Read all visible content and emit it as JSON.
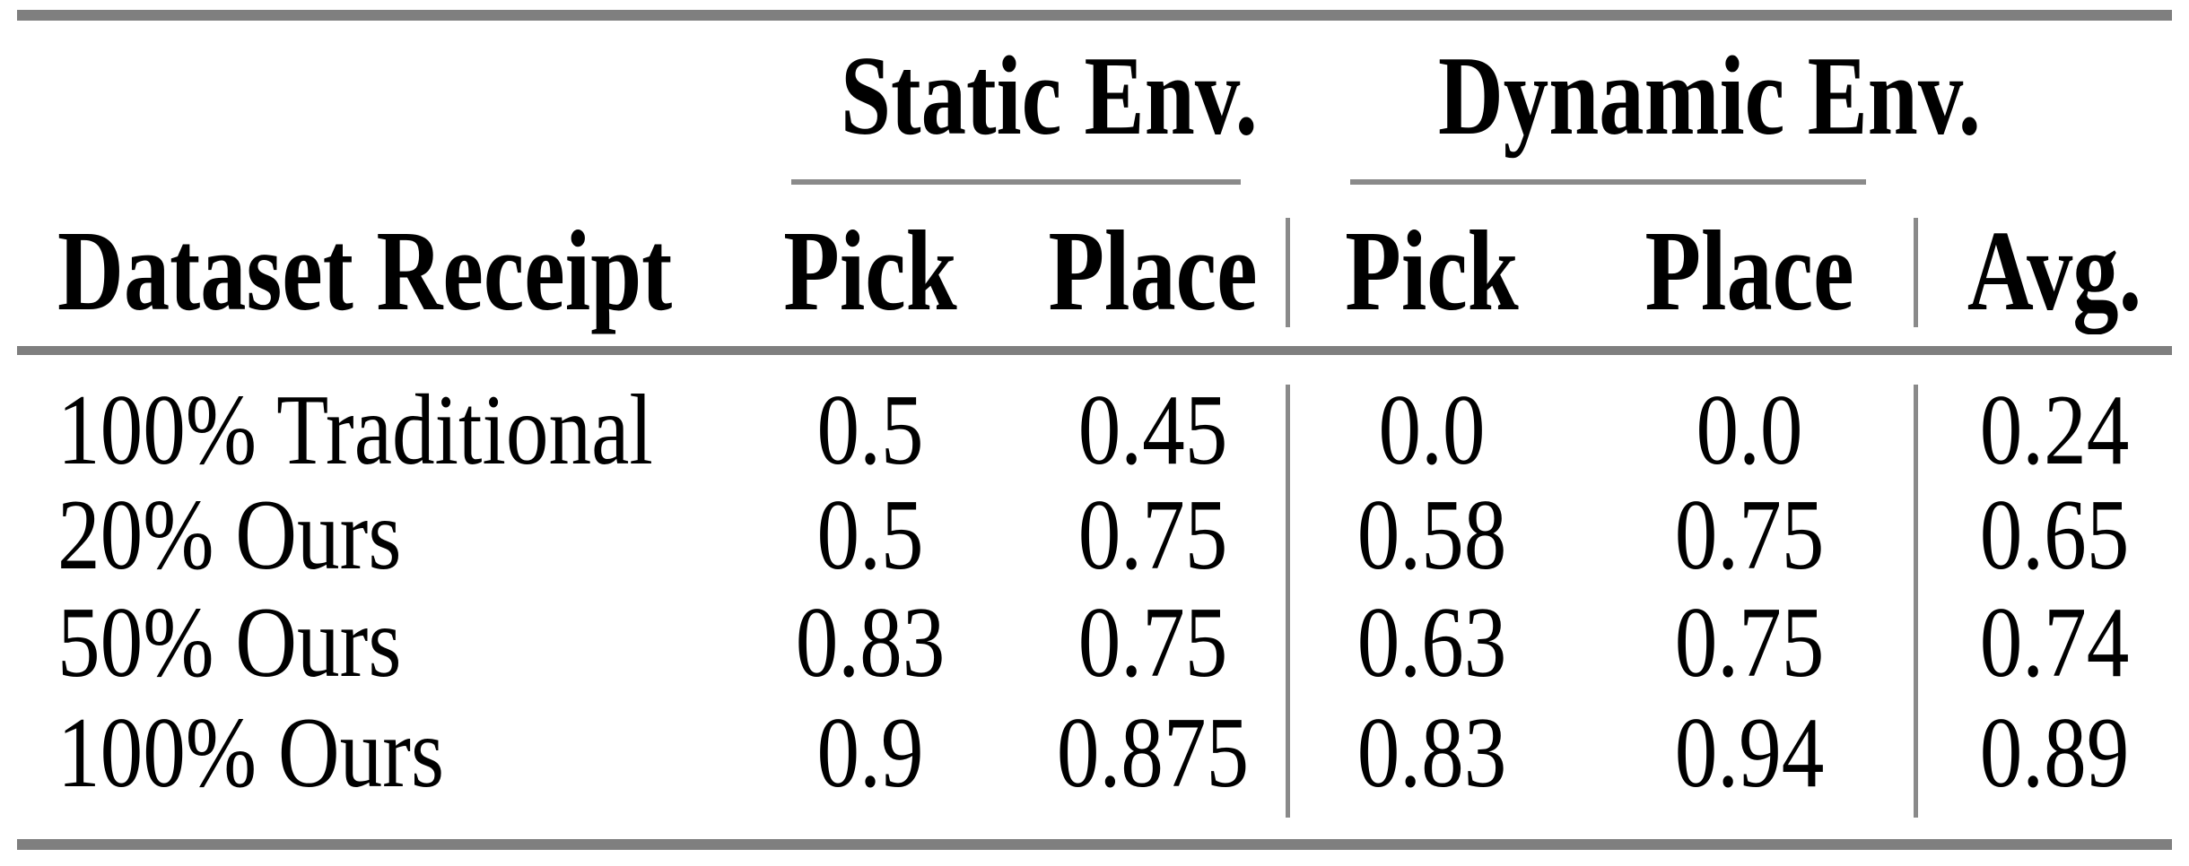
{
  "table": {
    "group_headers": {
      "static": "Static Env.",
      "dynamic": "Dynamic Env."
    },
    "columns": {
      "label": "Dataset Receipt",
      "static_pick": "Pick",
      "static_place": "Place",
      "dynamic_pick": "Pick",
      "dynamic_place": "Place",
      "avg": "Avg."
    },
    "rows": [
      {
        "label": "100% Traditional",
        "static_pick": "0.5",
        "static_place": "0.45",
        "dynamic_pick": "0.0",
        "dynamic_place": "0.0",
        "avg": "0.24"
      },
      {
        "label": "20% Ours",
        "static_pick": "0.5",
        "static_place": "0.75",
        "dynamic_pick": "0.58",
        "dynamic_place": "0.75",
        "avg": "0.65"
      },
      {
        "label": "50% Ours",
        "static_pick": "0.83",
        "static_place": "0.75",
        "dynamic_pick": "0.63",
        "dynamic_place": "0.75",
        "avg": "0.74"
      },
      {
        "label": "100% Ours",
        "static_pick": "0.9",
        "static_place": "0.875",
        "dynamic_pick": "0.83",
        "dynamic_place": "0.94",
        "avg": "0.89"
      }
    ],
    "colors": {
      "thick_rule": "#7f7f7f",
      "thin_rule": "#8a8a8a",
      "text": "#000000",
      "background": "#ffffff"
    }
  },
  "chart_data": {
    "type": "table",
    "title": "",
    "column_groups": [
      "Static Env.",
      "Dynamic Env."
    ],
    "columns": [
      "Dataset Receipt",
      "Static Pick",
      "Static Place",
      "Dynamic Pick",
      "Dynamic Place",
      "Avg."
    ],
    "rows": [
      [
        "100% Traditional",
        0.5,
        0.45,
        0.0,
        0.0,
        0.24
      ],
      [
        "20% Ours",
        0.5,
        0.75,
        0.58,
        0.75,
        0.65
      ],
      [
        "50% Ours",
        0.83,
        0.75,
        0.63,
        0.75,
        0.74
      ],
      [
        "100% Ours",
        0.9,
        0.875,
        0.83,
        0.94,
        0.89
      ]
    ]
  }
}
